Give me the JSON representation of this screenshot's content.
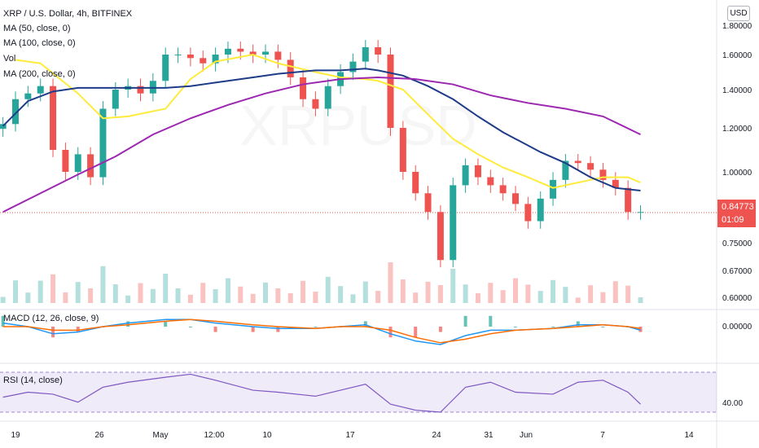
{
  "header": {
    "symbol_title": "XRP / U.S. Dollar, 4h, BITFINEX",
    "ma50_label": "MA (50, close, 0)",
    "ma100_label": "MA (100, close, 0)",
    "vol_label": "Vol",
    "ma200_label": "MA (200, close, 0)",
    "currency_button": "USD"
  },
  "last_price": {
    "value": "0.84773",
    "countdown": "01:09"
  },
  "macd_panel": {
    "label": "MACD (12, 26, close, 9)",
    "tick": "0.00000"
  },
  "rsi_panel": {
    "label": "RSI (14, close)",
    "tick": "40.00"
  },
  "colors": {
    "up": "#26a69a",
    "down": "#ef5350",
    "ma50": "#ffeb3b",
    "ma100": "#1f3c88",
    "ma200": "#9c27b0",
    "macd": "#2196f3",
    "signal": "#ff6d00",
    "rsi": "#7e57c2"
  },
  "chart_data": {
    "type": "line",
    "price_axis": {
      "ticks": [
        "1.80000",
        "1.60000",
        "1.40000",
        "1.20000",
        "1.00000",
        "0.75000",
        "0.67000",
        "0.60000"
      ]
    },
    "time_axis": {
      "ticks": [
        "19",
        "26",
        "May",
        "12:00",
        "10",
        "17",
        "24",
        "31",
        "Jun",
        "7",
        "14"
      ]
    },
    "price_range": [
      0.58,
      1.8
    ],
    "series": [
      {
        "name": "MA (50, close, 0)",
        "x": [
          "Apr 19",
          "Apr 21",
          "Apr 24",
          "Apr 26",
          "Apr 28",
          "May 1",
          "May 3",
          "May 5",
          "May 8",
          "May 10",
          "May 13",
          "May 15",
          "May 17",
          "May 18",
          "May 20",
          "May 22",
          "May 24",
          "May 26",
          "May 28",
          "May 30",
          "Jun 1",
          "Jun 3",
          "Jun 5",
          "Jun 7",
          "Jun 8"
        ],
        "values": [
          1.57,
          1.55,
          1.38,
          1.25,
          1.26,
          1.3,
          1.46,
          1.56,
          1.6,
          1.55,
          1.5,
          1.47,
          1.46,
          1.45,
          1.4,
          1.27,
          1.15,
          1.08,
          1.02,
          0.98,
          0.94,
          0.96,
          0.98,
          0.98,
          0.96
        ]
      },
      {
        "name": "MA (100, close, 0)",
        "x": [
          "Apr 18",
          "Apr 20",
          "Apr 22",
          "Apr 24",
          "Apr 26",
          "Apr 28",
          "May 1",
          "May 3",
          "May 5",
          "May 8",
          "May 10",
          "May 13",
          "May 15",
          "May 17",
          "May 18",
          "May 20",
          "May 22",
          "May 24",
          "May 26",
          "May 28",
          "May 31",
          "Jun 2",
          "Jun 4",
          "Jun 6",
          "Jun 8"
        ],
        "values": [
          1.21,
          1.34,
          1.39,
          1.41,
          1.41,
          1.41,
          1.41,
          1.42,
          1.44,
          1.47,
          1.49,
          1.51,
          1.51,
          1.52,
          1.51,
          1.48,
          1.42,
          1.35,
          1.26,
          1.18,
          1.09,
          1.04,
          0.98,
          0.94,
          0.93
        ]
      },
      {
        "name": "MA (200, close, 0)",
        "x": [
          "Apr 18",
          "Apr 21",
          "Apr 24",
          "Apr 27",
          "Apr 30",
          "May 3",
          "May 6",
          "May 9",
          "May 12",
          "May 15",
          "May 18",
          "May 21",
          "May 24",
          "May 27",
          "May 30",
          "Jun 2",
          "Jun 5",
          "Jun 8"
        ],
        "values": [
          0.85,
          0.92,
          0.99,
          1.07,
          1.17,
          1.25,
          1.32,
          1.38,
          1.43,
          1.46,
          1.47,
          1.46,
          1.43,
          1.37,
          1.33,
          1.3,
          1.26,
          1.17
        ]
      },
      {
        "name": "XRP / U.S. Dollar",
        "x": [
          "Apr 18",
          "Apr 19",
          "Apr 20",
          "Apr 21",
          "Apr 22",
          "Apr 23",
          "Apr 24",
          "Apr 25",
          "Apr 26",
          "Apr 27",
          "Apr 28",
          "Apr 29",
          "Apr 30",
          "May 1",
          "May 2",
          "May 3",
          "May 4",
          "May 5",
          "May 6",
          "May 7",
          "May 8",
          "May 9",
          "May 10",
          "May 11",
          "May 12",
          "May 13",
          "May 14",
          "May 15",
          "May 16",
          "May 17",
          "May 18",
          "May 19",
          "May 20",
          "May 21",
          "May 22",
          "May 23",
          "May 24",
          "May 25",
          "May 26",
          "May 27",
          "May 28",
          "May 29",
          "May 30",
          "May 31",
          "Jun 1",
          "Jun 2",
          "Jun 3",
          "Jun 4",
          "Jun 5",
          "Jun 6",
          "Jun 7",
          "Jun 8"
        ],
        "values": [
          1.22,
          1.35,
          1.38,
          1.42,
          1.1,
          1.0,
          1.08,
          0.98,
          1.3,
          1.4,
          1.42,
          1.38,
          1.45,
          1.6,
          1.6,
          1.58,
          1.55,
          1.6,
          1.64,
          1.62,
          1.6,
          1.62,
          1.57,
          1.47,
          1.35,
          1.3,
          1.42,
          1.5,
          1.56,
          1.65,
          1.6,
          1.2,
          1.0,
          0.92,
          0.85,
          0.7,
          0.95,
          1.03,
          0.98,
          0.95,
          0.92,
          0.88,
          0.82,
          0.9,
          0.97,
          1.05,
          1.04,
          1.01,
          0.97,
          0.94,
          0.85,
          0.85
        ]
      }
    ],
    "macd": {
      "name": "MACD (12, 26, close, 9)",
      "x": [
        "Apr 18",
        "Apr 20",
        "Apr 22",
        "Apr 24",
        "Apr 26",
        "Apr 28",
        "May 1",
        "May 3",
        "May 5",
        "May 8",
        "May 10",
        "May 13",
        "May 15",
        "May 17",
        "May 19",
        "May 21",
        "May 23",
        "May 25",
        "May 27",
        "May 29",
        "Jun 1",
        "Jun 3",
        "Jun 5",
        "Jun 7",
        "Jun 8"
      ],
      "macd_values": [
        0.02,
        0.0,
        -0.04,
        -0.03,
        0.0,
        0.02,
        0.04,
        0.04,
        0.02,
        0.0,
        -0.01,
        -0.01,
        0.0,
        0.01,
        -0.04,
        -0.08,
        -0.1,
        -0.05,
        -0.02,
        -0.02,
        -0.01,
        0.01,
        0.01,
        0.0,
        -0.02
      ],
      "signal_values": [
        0.0,
        0.0,
        -0.02,
        -0.02,
        0.0,
        0.01,
        0.03,
        0.04,
        0.03,
        0.01,
        0.0,
        -0.01,
        0.0,
        0.0,
        -0.02,
        -0.06,
        -0.09,
        -0.07,
        -0.04,
        -0.02,
        -0.01,
        0.0,
        0.01,
        0.0,
        -0.01
      ]
    },
    "rsi": {
      "name": "RSI (14, close)",
      "x": [
        "Apr 18",
        "Apr 20",
        "Apr 22",
        "Apr 24",
        "Apr 26",
        "Apr 28",
        "May 1",
        "May 3",
        "May 5",
        "May 8",
        "May 10",
        "May 13",
        "May 15",
        "May 17",
        "May 19",
        "May 21",
        "May 23",
        "May 25",
        "May 27",
        "May 29",
        "Jun 1",
        "Jun 3",
        "Jun 5",
        "Jun 7",
        "Jun 8"
      ],
      "values": [
        45,
        50,
        48,
        40,
        55,
        60,
        65,
        68,
        62,
        52,
        50,
        46,
        52,
        58,
        38,
        32,
        30,
        55,
        60,
        50,
        48,
        60,
        62,
        50,
        38
      ],
      "band": [
        30,
        70
      ]
    }
  }
}
